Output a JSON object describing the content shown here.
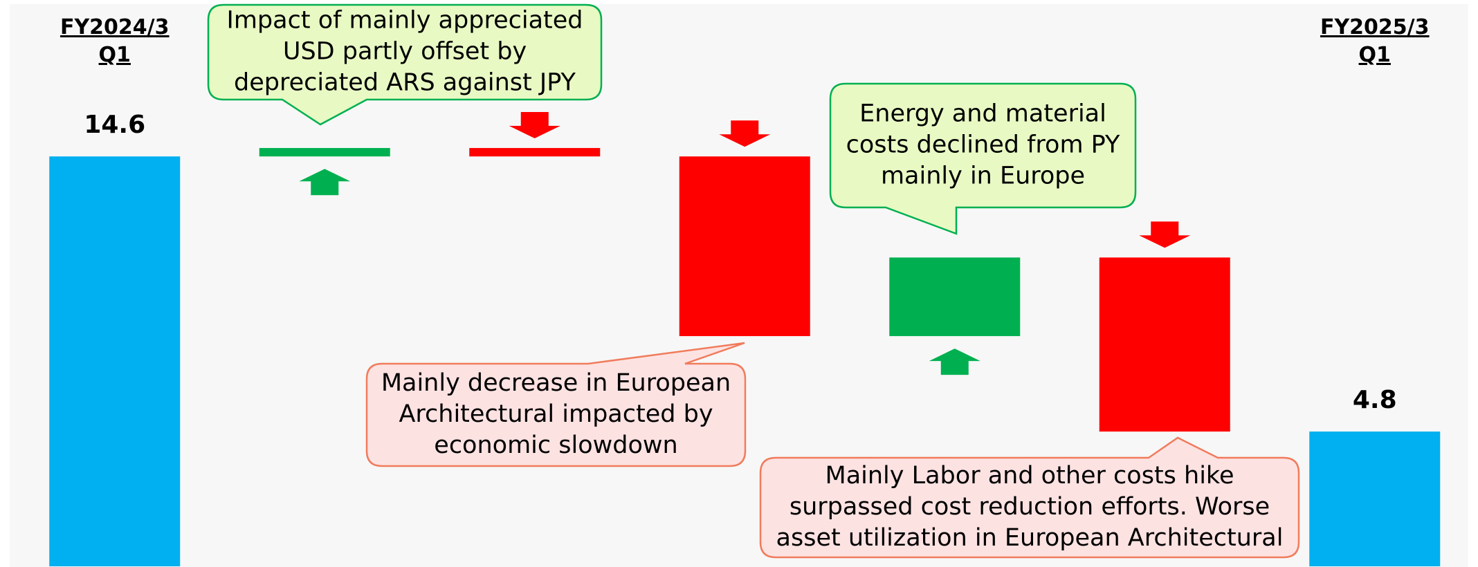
{
  "chart_data": {
    "type": "waterfall",
    "categories": [
      "FY2024/3 Q1",
      null,
      null,
      null,
      null,
      null,
      "FY2025/3 Q1"
    ],
    "values": [
      14.6,
      0.3,
      -0.3,
      -6.4,
      2.8,
      -6.2,
      4.8
    ],
    "measure": [
      "absolute",
      "relative",
      "relative",
      "relative",
      "relative",
      "relative",
      "total"
    ],
    "total_color": "#00b0f0",
    "increase_color": "#00b050",
    "decrease_color": "#ff0000",
    "ylim": [
      0,
      20
    ],
    "annotations": [
      {
        "lines": [
          "Impact of mainly appreciated",
          "USD partly offset by",
          "depreciated ARS against JPY"
        ],
        "fill": "#e8f9c4",
        "stroke": "#00b050"
      },
      {
        "lines": [
          "Mainly decrease in European",
          "Architectural impacted by",
          "economic slowdown"
        ],
        "fill": "#fde2e2",
        "stroke": "#f07c5c"
      },
      {
        "lines": [
          "Energy and material",
          "costs declined from PY",
          "mainly in Europe"
        ],
        "fill": "#e8f9c4",
        "stroke": "#00b050"
      },
      {
        "lines": [
          "Mainly Labor and other costs hike",
          "surpassed cost reduction efforts. Worse",
          "asset utilization in European Architectural"
        ],
        "fill": "#fde2e2",
        "stroke": "#f07c5c"
      }
    ]
  }
}
